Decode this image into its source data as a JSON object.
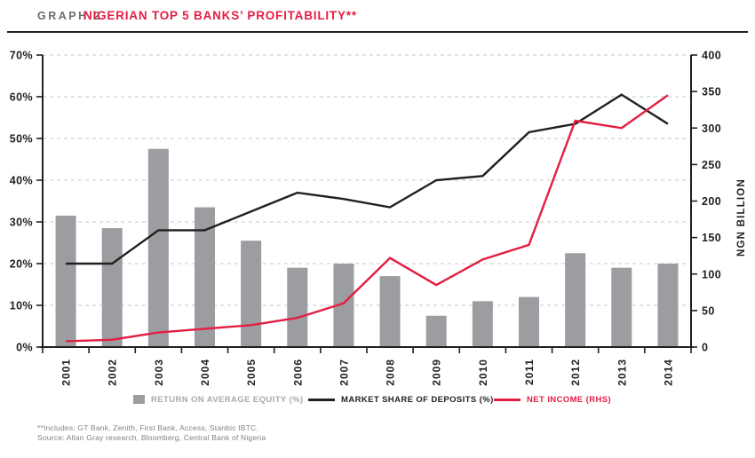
{
  "header": {
    "graph_label": "GRAPH 2",
    "title": "NIGERIAN TOP 5 BANKS’ PROFITABILITY**"
  },
  "colors": {
    "accent": "#E31E43",
    "ink": "#231F20",
    "bar_gray": "#9B9DA0",
    "grid_gray": "#D0D2D3",
    "gray_dark": "#6D6E71",
    "gray_mid": "#808285",
    "legend_gray": "#A7A9AC"
  },
  "chart_data": {
    "type": "bar",
    "subtype": "combo-bar-line",
    "categories": [
      "2001",
      "2002",
      "2003",
      "2004",
      "2005",
      "2006",
      "2007",
      "2008",
      "2009",
      "2010",
      "2011",
      "2012",
      "2013",
      "2014"
    ],
    "series": [
      {
        "name": "RETURN ON AVERAGE EQUITY (%)",
        "type": "bar",
        "axis": "left",
        "color": "#9B9DA0",
        "values": [
          31.5,
          28.5,
          47.5,
          33.5,
          25.5,
          19,
          20,
          17,
          7.5,
          11,
          12,
          22.5,
          19,
          20
        ]
      },
      {
        "name": "MARKET SHARE OF DEPOSITS (%)",
        "type": "line",
        "axis": "left",
        "color": "#231F20",
        "values": [
          20,
          20,
          28,
          28,
          32.5,
          37,
          35.5,
          33.5,
          40,
          41,
          51.5,
          53.5,
          60.5,
          53.5
        ]
      },
      {
        "name": "NET INCOME (RHS)",
        "type": "line",
        "axis": "right",
        "color": "#E31E43",
        "values": [
          8,
          10,
          20,
          25,
          30,
          40,
          60,
          122,
          85,
          120,
          140,
          310,
          300,
          345
        ]
      }
    ],
    "left_axis": {
      "min": 0,
      "max": 70,
      "step": 10,
      "tick_labels": [
        "0%",
        "10%",
        "20%",
        "30%",
        "40%",
        "50%",
        "60%",
        "70%"
      ]
    },
    "right_axis": {
      "min": 0,
      "max": 400,
      "step": 50,
      "title": "NGN BILLION",
      "tick_labels": [
        "0",
        "50",
        "100",
        "150",
        "200",
        "250",
        "300",
        "350",
        "400"
      ]
    },
    "grid": "horizontal-dashed",
    "legend_position": "bottom"
  },
  "footnotes": [
    "**Includes: GT Bank, Zenith, First Bank, Access, Stanbic IBTC.",
    "Source: Allan Gray research, Bloomberg, Central Bank of Nigeria"
  ]
}
